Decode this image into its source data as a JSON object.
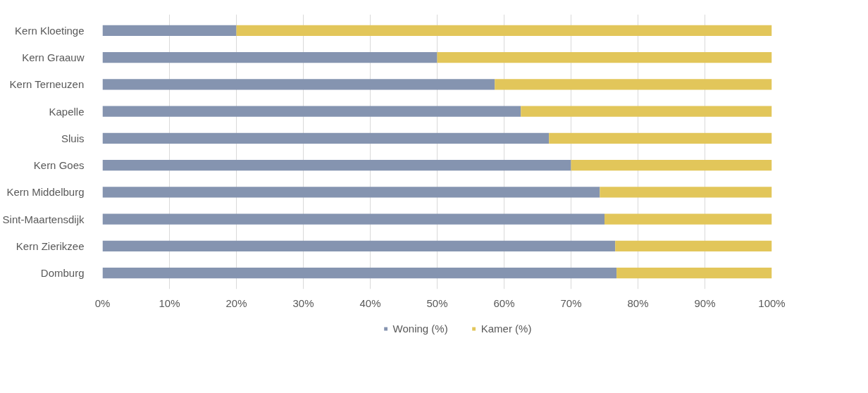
{
  "chart_data": {
    "type": "bar",
    "orientation": "horizontal",
    "stacked": true,
    "categories": [
      "Kern Kloetinge",
      "Kern Graauw",
      "Kern Terneuzen",
      "Kapelle",
      "Sluis",
      "Kern Goes",
      "Kern Middelburg",
      "Sint-Maartensdijk",
      "Kern Zierikzee",
      "Domburg"
    ],
    "series": [
      {
        "name": "Woning (%)",
        "color": "#8594b0",
        "values": [
          20,
          50,
          58.6,
          62.5,
          66.7,
          70,
          74.3,
          75,
          76.6,
          76.8
        ]
      },
      {
        "name": "Kamer (%)",
        "color": "#e2c65a",
        "values": [
          80,
          50,
          41.4,
          37.5,
          33.3,
          30,
          25.7,
          25,
          23.4,
          23.2
        ]
      }
    ],
    "xlim": [
      0,
      100
    ],
    "xticks": [
      {
        "value": 0,
        "label": "0%"
      },
      {
        "value": 10,
        "label": "10%"
      },
      {
        "value": 20,
        "label": "20%"
      },
      {
        "value": 30,
        "label": "30%"
      },
      {
        "value": 40,
        "label": "40%"
      },
      {
        "value": 50,
        "label": "50%"
      },
      {
        "value": 60,
        "label": "60%"
      },
      {
        "value": 70,
        "label": "70%"
      },
      {
        "value": 80,
        "label": "80%"
      },
      {
        "value": 90,
        "label": "90%"
      },
      {
        "value": 100,
        "label": "100%"
      }
    ],
    "grid": "x",
    "legend": "bottom"
  }
}
